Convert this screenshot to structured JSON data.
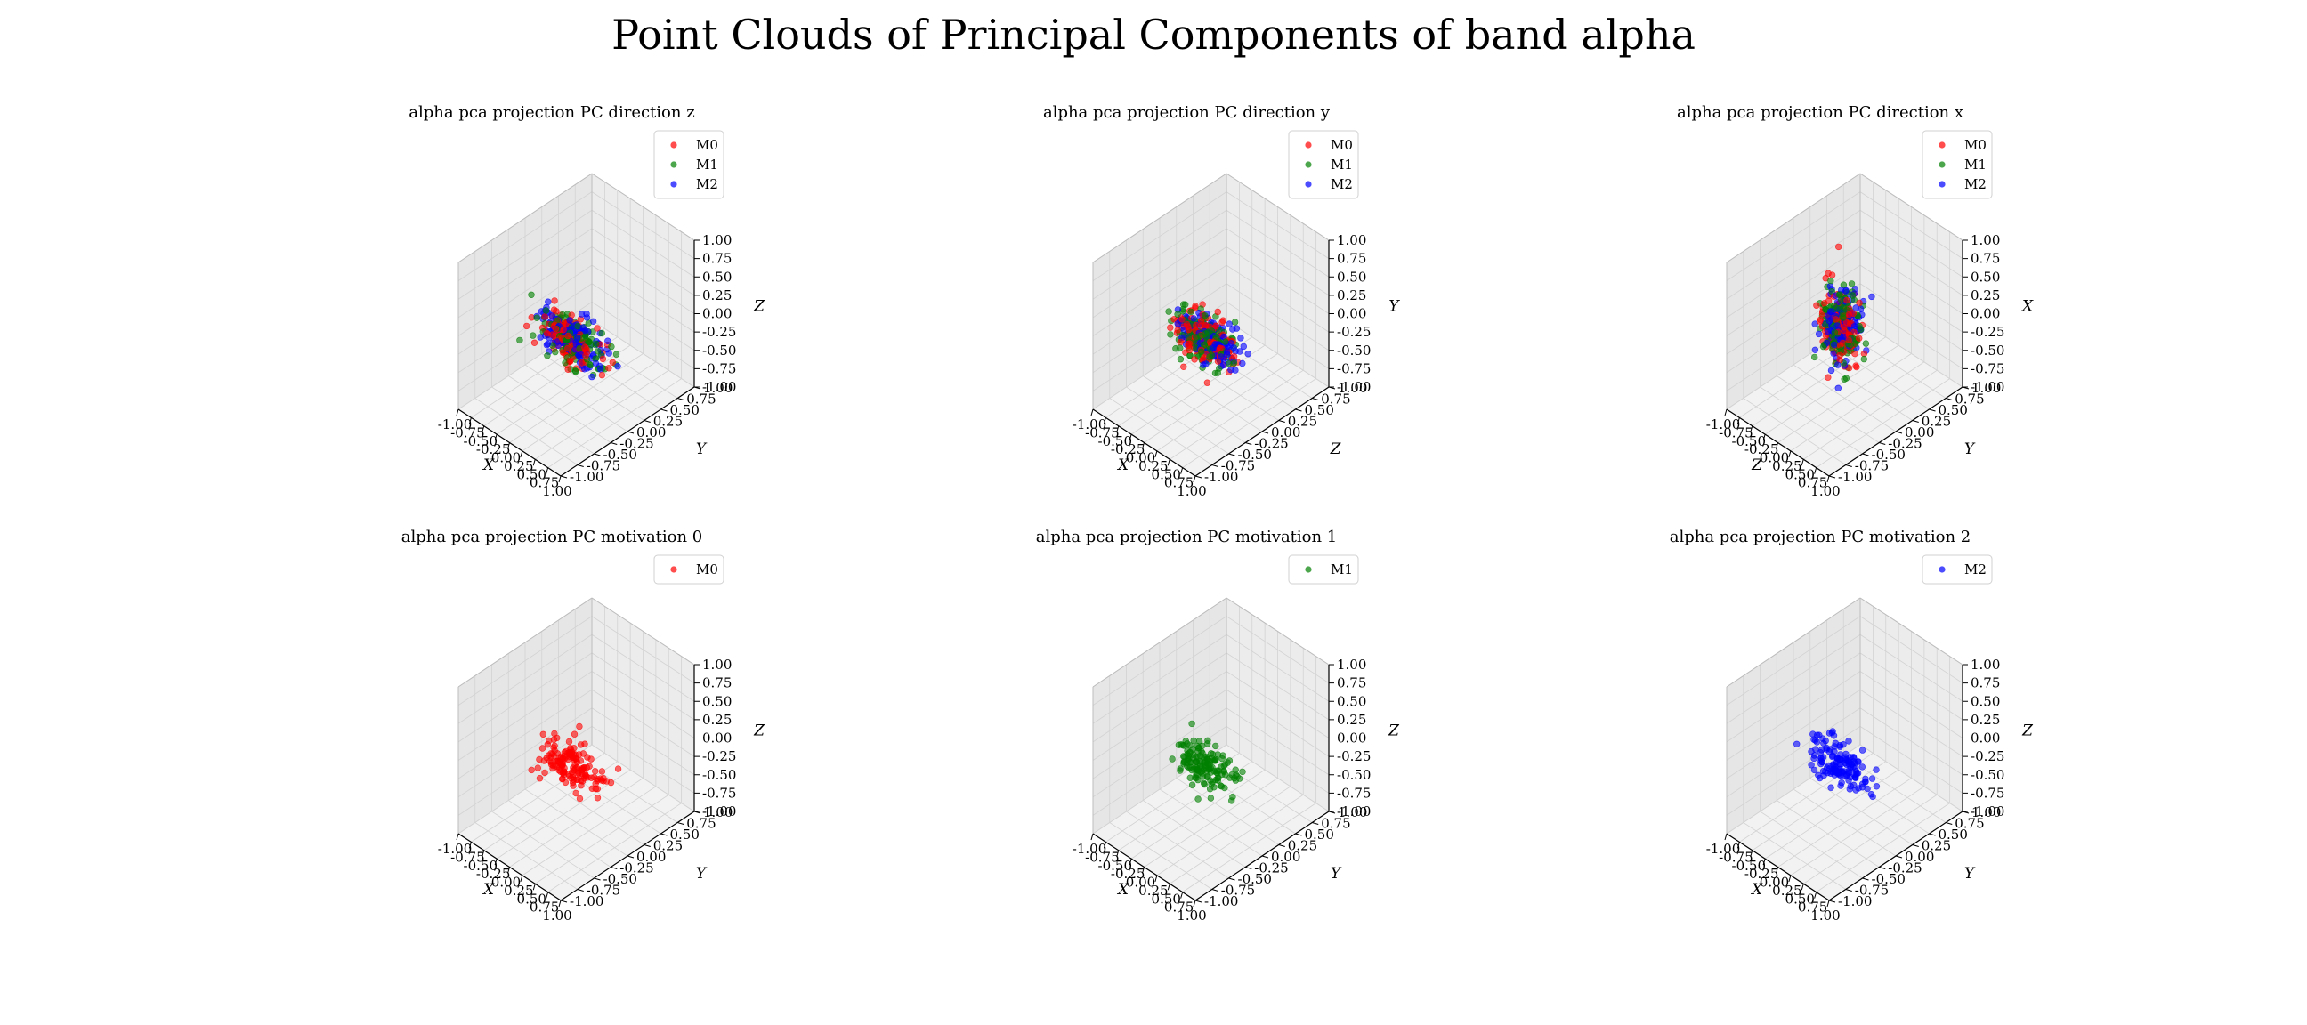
{
  "figure": {
    "title": "Point Clouds of Principal Components of band alpha"
  },
  "chart_data": [
    {
      "type": "scatter",
      "title": "alpha pca projection PC direction z",
      "xlabel": "X",
      "ylabel": "Y",
      "zlabel": "Z",
      "xlim": [
        -1,
        1
      ],
      "ylim": [
        -1,
        1
      ],
      "zlim": [
        -1,
        1
      ],
      "ticks": [
        "-1.00",
        "-0.75",
        "-0.50",
        "-0.25",
        "0.00",
        "0.25",
        "0.50",
        "0.75",
        "1.00"
      ],
      "legend": {
        "position": "upper-right",
        "entries": [
          "M0",
          "M1",
          "M2"
        ]
      },
      "series": [
        {
          "name": "M0",
          "color": "#ff0000",
          "n": 140,
          "center": [
            -0.05,
            -0.05,
            -0.2
          ],
          "spread": [
            0.28,
            0.1,
            0.12
          ]
        },
        {
          "name": "M1",
          "color": "#008000",
          "n": 140,
          "center": [
            0.0,
            -0.05,
            -0.2
          ],
          "spread": [
            0.3,
            0.1,
            0.12
          ]
        },
        {
          "name": "M2",
          "color": "#0000ff",
          "n": 140,
          "center": [
            -0.02,
            -0.04,
            -0.18
          ],
          "spread": [
            0.26,
            0.1,
            0.13
          ]
        }
      ]
    },
    {
      "type": "scatter",
      "title": "alpha pca projection PC direction y",
      "xlabel": "X",
      "ylabel": "Z",
      "zlabel": "Y",
      "xlim": [
        -1,
        1
      ],
      "ylim": [
        -1,
        1
      ],
      "zlim": [
        -1,
        1
      ],
      "ticks": [
        "-1.00",
        "-0.75",
        "-0.50",
        "-0.25",
        "0.00",
        "0.25",
        "0.50",
        "0.75",
        "1.00"
      ],
      "legend": {
        "position": "upper-right",
        "entries": [
          "M0",
          "M1",
          "M2"
        ]
      },
      "series": [
        {
          "name": "M0",
          "color": "#ff0000",
          "n": 140,
          "center": [
            -0.05,
            -0.05,
            -0.18
          ],
          "spread": [
            0.28,
            0.1,
            0.12
          ]
        },
        {
          "name": "M1",
          "color": "#008000",
          "n": 140,
          "center": [
            -0.03,
            -0.05,
            -0.18
          ],
          "spread": [
            0.26,
            0.1,
            0.12
          ]
        },
        {
          "name": "M2",
          "color": "#0000ff",
          "n": 140,
          "center": [
            0.0,
            -0.04,
            -0.16
          ],
          "spread": [
            0.28,
            0.1,
            0.12
          ]
        }
      ]
    },
    {
      "type": "scatter",
      "title": "alpha pca projection PC direction x",
      "xlabel": "Z",
      "ylabel": "Y",
      "zlabel": "X",
      "xlim": [
        -1,
        1
      ],
      "ylim": [
        -1,
        1
      ],
      "zlim": [
        -1,
        1
      ],
      "ticks": [
        "-1.00",
        "-0.75",
        "-0.50",
        "-0.25",
        "0.00",
        "0.25",
        "0.50",
        "0.75",
        "1.00"
      ],
      "legend": {
        "position": "upper-right",
        "entries": [
          "M0",
          "M1",
          "M2"
        ]
      },
      "series": [
        {
          "name": "M0",
          "color": "#ff0000",
          "n": 140,
          "center": [
            -0.05,
            -0.03,
            -0.05
          ],
          "spread": [
            0.14,
            0.1,
            0.26
          ]
        },
        {
          "name": "M1",
          "color": "#008000",
          "n": 140,
          "center": [
            -0.05,
            -0.03,
            -0.06
          ],
          "spread": [
            0.14,
            0.1,
            0.26
          ]
        },
        {
          "name": "M2",
          "color": "#0000ff",
          "n": 140,
          "center": [
            -0.03,
            -0.02,
            -0.02
          ],
          "spread": [
            0.12,
            0.1,
            0.24
          ]
        }
      ]
    },
    {
      "type": "scatter",
      "title": "alpha pca projection PC motivation 0",
      "xlabel": "X",
      "ylabel": "Y",
      "zlabel": "Z",
      "xlim": [
        -1,
        1
      ],
      "ylim": [
        -1,
        1
      ],
      "zlim": [
        -1,
        1
      ],
      "ticks": [
        "-1.00",
        "-0.75",
        "-0.50",
        "-0.25",
        "0.00",
        "0.25",
        "0.50",
        "0.75",
        "1.00"
      ],
      "legend": {
        "position": "upper-right",
        "entries": [
          "M0"
        ]
      },
      "series": [
        {
          "name": "M0",
          "color": "#ff0000",
          "n": 150,
          "center": [
            -0.05,
            -0.05,
            -0.2
          ],
          "spread": [
            0.28,
            0.1,
            0.12
          ]
        }
      ]
    },
    {
      "type": "scatter",
      "title": "alpha pca projection PC motivation 1",
      "xlabel": "X",
      "ylabel": "Y",
      "zlabel": "Z",
      "xlim": [
        -1,
        1
      ],
      "ylim": [
        -1,
        1
      ],
      "zlim": [
        -1,
        1
      ],
      "ticks": [
        "-1.00",
        "-0.75",
        "-0.50",
        "-0.25",
        "0.00",
        "0.25",
        "0.50",
        "0.75",
        "1.00"
      ],
      "legend": {
        "position": "upper-right",
        "entries": [
          "M1"
        ]
      },
      "series": [
        {
          "name": "M1",
          "color": "#008000",
          "n": 150,
          "center": [
            -0.02,
            -0.05,
            -0.2
          ],
          "spread": [
            0.28,
            0.1,
            0.12
          ]
        }
      ]
    },
    {
      "type": "scatter",
      "title": "alpha pca projection PC motivation 2",
      "xlabel": "X",
      "ylabel": "Y",
      "zlabel": "Z",
      "xlim": [
        -1,
        1
      ],
      "ylim": [
        -1,
        1
      ],
      "zlim": [
        -1,
        1
      ],
      "ticks": [
        "-1.00",
        "-0.75",
        "-0.50",
        "-0.25",
        "0.00",
        "0.25",
        "0.50",
        "0.75",
        "1.00"
      ],
      "legend": {
        "position": "upper-right",
        "entries": [
          "M2"
        ]
      },
      "series": [
        {
          "name": "M2",
          "color": "#0000ff",
          "n": 150,
          "center": [
            -0.05,
            -0.05,
            -0.18
          ],
          "spread": [
            0.26,
            0.1,
            0.13
          ]
        }
      ]
    }
  ]
}
